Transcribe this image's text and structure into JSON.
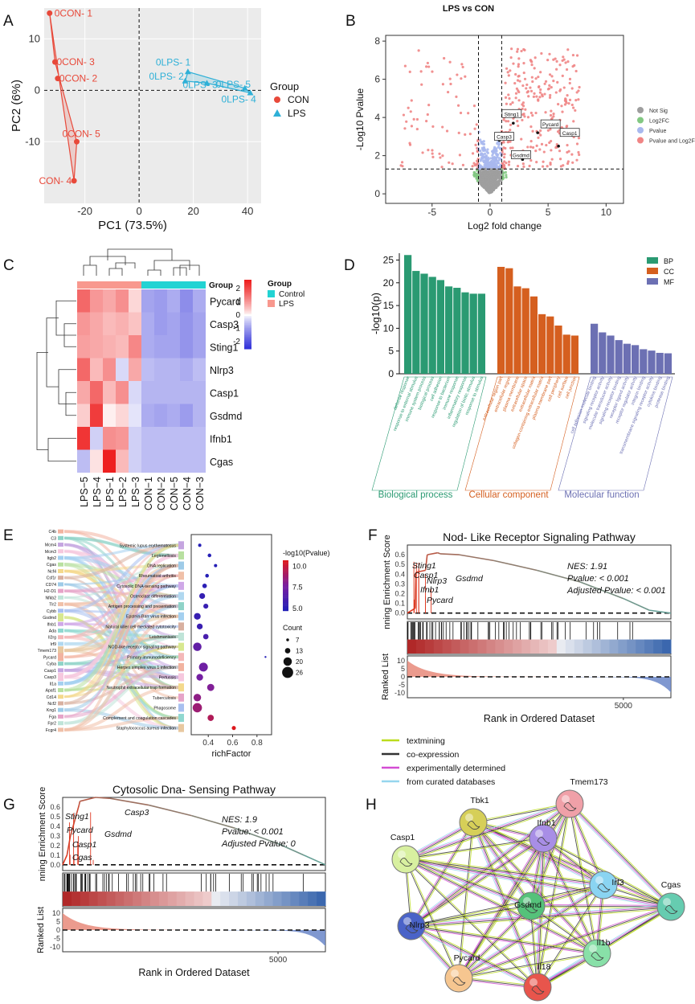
{
  "panel_letters": [
    "A",
    "B",
    "C",
    "D",
    "E",
    "F",
    "G",
    "H"
  ],
  "chart_data": [
    {
      "panel": "A",
      "type": "scatter",
      "xlabel": "PC1 (73.5%)",
      "ylabel": "PC2 (6%)",
      "xticks": [
        -20,
        0,
        20,
        40
      ],
      "yticks": [
        -10,
        0,
        10
      ],
      "xlim": [
        -35,
        45
      ],
      "ylim": [
        -22,
        16
      ],
      "legend_title": "Group",
      "legend": [
        "CON",
        "LPS"
      ],
      "colors": {
        "CON": "#e8493a",
        "LPS": "#2eb0d7"
      },
      "points": [
        {
          "label": "0CON- 1",
          "group": "CON",
          "x": -33,
          "y": 15
        },
        {
          "label": "0CON- 3",
          "group": "CON",
          "x": -31,
          "y": 5.5
        },
        {
          "label": "0CON- 2",
          "group": "CON",
          "x": -30,
          "y": 2.3
        },
        {
          "label": "0CON- 5",
          "group": "CON",
          "x": -23,
          "y": -10
        },
        {
          "label": "CON- 4",
          "group": "CON",
          "x": -24,
          "y": -17.6
        },
        {
          "label": "0LPS- 1",
          "group": "LPS",
          "x": 18,
          "y": 3.6
        },
        {
          "label": "0LPS- 2",
          "group": "LPS",
          "x": 17,
          "y": 1.8
        },
        {
          "label": "0LPS- 3",
          "group": "LPS",
          "x": 25,
          "y": 1.4
        },
        {
          "label": "0LPS- 5",
          "group": "LPS",
          "x": 39,
          "y": 0.4
        },
        {
          "label": "0LPS- 4",
          "group": "LPS",
          "x": 41,
          "y": -0.5
        }
      ]
    },
    {
      "panel": "B",
      "type": "scatter",
      "title": "LPS vs CON",
      "xlabel": "Log2 fold change",
      "ylabel": "-Log10 Pvalue",
      "xticks": [
        -5,
        0,
        5,
        10
      ],
      "yticks": [
        0,
        2,
        4,
        6,
        8
      ],
      "xlim": [
        -9,
        11.5
      ],
      "ylim": [
        -0.5,
        8.3
      ],
      "thresholds": {
        "log2fc": [
          -1,
          1
        ],
        "log10p": 1.3
      },
      "legend": [
        "Not Sig",
        "Log2FC",
        "Pvalue",
        "Pvalue and Log2FC"
      ],
      "legend_colors": [
        "#9e9e9e",
        "#82c882",
        "#a8b8ee",
        "#f08585"
      ],
      "annotations": [
        {
          "label": "Sting1",
          "x": 2.0,
          "y": 3.7
        },
        {
          "label": "Pycard",
          "x": 4.1,
          "y": 3.2
        },
        {
          "label": "Casp3",
          "x": 0.8,
          "y": 2.8
        },
        {
          "label": "Casp1",
          "x": 5.9,
          "y": 2.5
        },
        {
          "label": "Gsdmd",
          "x": 2.8,
          "y": 1.8
        }
      ]
    },
    {
      "panel": "C",
      "type": "heatmap",
      "rows": [
        "Pycard",
        "Casp3",
        "Sting1",
        "Nlrp3",
        "Casp1",
        "Gsdmd",
        "Ifnb1",
        "Cgas"
      ],
      "columns": [
        "LPS−5",
        "LPS−4",
        "LPS−1",
        "LPS−2",
        "LPS−3",
        "CON−1",
        "CON−2",
        "CON−5",
        "CON−4",
        "CON−3"
      ],
      "annotation_label": "Group",
      "legend_title": "Group",
      "legend": [
        "Control",
        "LPS"
      ],
      "group_colors": {
        "Control": "#22d3d3",
        "LPS": "#f8988e"
      },
      "colorbar_ticks": [
        2,
        1,
        0,
        -1,
        -2
      ],
      "values": [
        [
          1.6,
          1.0,
          0.8,
          1.1,
          0.3,
          -0.9,
          -1.0,
          -0.8,
          -1.2,
          -0.8
        ],
        [
          1.0,
          0.8,
          0.6,
          0.7,
          0.5,
          -0.8,
          -1.0,
          -0.9,
          -1.1,
          -0.9
        ],
        [
          0.9,
          0.8,
          0.7,
          0.6,
          1.2,
          -0.8,
          -0.9,
          -0.9,
          -1.1,
          -0.9
        ],
        [
          1.6,
          0.6,
          1.1,
          -0.3,
          0.8,
          -0.6,
          -0.7,
          -0.7,
          -0.8,
          -0.6
        ],
        [
          0.8,
          1.6,
          0.6,
          1.1,
          -0.3,
          -0.7,
          -0.7,
          -0.7,
          -0.7,
          -0.7
        ],
        [
          0.4,
          2.2,
          0.1,
          0.3,
          -0.2,
          -0.8,
          -0.9,
          -0.8,
          -1.0,
          -0.7
        ],
        [
          2.3,
          -0.4,
          1.1,
          1.0,
          -0.4,
          -0.6,
          -0.6,
          -0.6,
          -0.6,
          -0.6
        ],
        [
          -0.6,
          0.2,
          2.6,
          0.6,
          -0.4,
          -0.6,
          -0.6,
          -0.6,
          -0.6,
          -0.6
        ]
      ]
    },
    {
      "panel": "D",
      "type": "bar",
      "ylabel": "-log10(p)",
      "yticks": [
        0,
        5,
        10,
        15,
        20,
        25
      ],
      "ylim": [
        0,
        26.5
      ],
      "legend": [
        "BP",
        "CC",
        "MF"
      ],
      "colors": {
        "BP": "#2a9a72",
        "CC": "#d55f1f",
        "MF": "#6c70b3"
      },
      "group_labels": {
        "BP": "Biological process",
        "CC": "Cellular component",
        "MF": "Molecular function"
      },
      "series": [
        {
          "name": "BP",
          "categories": [
            "defense response",
            "response to external stimulus",
            "immune system process",
            "biological process",
            "cell adhesion",
            "response to bacterium",
            "immune response",
            "inflammatory response",
            "regulation of biotic stimulus",
            "response to stimulus"
          ],
          "values": [
            26.1,
            22.6,
            22.0,
            21.3,
            20.6,
            19.2,
            18.9,
            17.9,
            17.6,
            17.6
          ]
        },
        {
          "name": "CC",
          "categories": [
            "extracellular region part",
            "extracellular region",
            "plasma membrane",
            "extracellular space",
            "extracellular matrix",
            "collagen-containing extracellular matrix",
            "plasma membrane part",
            "cell periphery",
            "cell surface",
            "cell junction"
          ],
          "values": [
            23.5,
            23.2,
            19.2,
            18.8,
            17.0,
            13.1,
            12.6,
            10.6,
            8.6,
            8.4
          ]
        },
        {
          "name": "MF",
          "categories": [
            "cell adhesion molecule binding",
            "signaling receptor activity",
            "molecular transducer activity",
            "signaling receptor binding",
            "receptor ligand activity",
            "receptor regulator activity",
            "integrin binding",
            "transmembrane signaling receptor activity",
            "cytokine binding",
            "protease binding"
          ],
          "values": [
            11.0,
            9.1,
            8.4,
            7.4,
            6.6,
            6.3,
            5.4,
            5.1,
            4.6,
            4.5
          ]
        }
      ]
    },
    {
      "panel": "E",
      "type": "scatter",
      "xlabel": "richFactor",
      "xticks": [
        0.4,
        0.6,
        0.8
      ],
      "xlim": [
        0.26,
        0.92
      ],
      "color_title": "-log10(Pvalue)",
      "color_ticks": [
        10.0,
        7.5,
        5.0
      ],
      "size_title": "Count",
      "size_ticks": [
        7,
        13,
        20,
        26
      ],
      "genes": [
        "C4b",
        "C3",
        "Mcm4",
        "Mcm3",
        "Itgb2",
        "Cgas",
        "Ncf4",
        "Csf1r",
        "CD74",
        "H2-D1",
        "Nfkb2",
        "Tlr2",
        "Cybb",
        "Gsdmd",
        "Ifnb1",
        "Ada",
        "Il2rg",
        "Irf9",
        "Tmem173",
        "Pycard",
        "Cyba",
        "Casp1",
        "Casp3",
        "Il1a",
        "Apaf1",
        "Cd14",
        "Ncf2",
        "Kng1",
        "Fga",
        "Fpr2",
        "Fcgr4"
      ],
      "pathways": [
        "Systemic lupus erythematosus",
        "Legionellosis",
        "DNA replication",
        "Rheumatoid arthritis",
        "Cytosolic DNA-sensing pathway",
        "Osteoclast differentiation",
        "Antigen processing and presentation",
        "Epstein-Barr virus infection",
        "Natural killer cell mediated cytotoxicity",
        "Leishmaniasis",
        "NOD-like receptor signaling pathway",
        "Primary immunodeficiency",
        "Herpes simplex virus 1 infection",
        "Pertussis",
        "Neutrophil extracellular trap formation",
        "Tuberculosis",
        "Phagosome",
        "Complement and coagulation cascades",
        "Staphylococcus aureus infection"
      ],
      "richFactor": [
        0.33,
        0.41,
        0.46,
        0.39,
        0.37,
        0.35,
        0.38,
        0.31,
        0.33,
        0.38,
        0.31,
        0.87,
        0.36,
        0.33,
        0.42,
        0.31,
        0.31,
        0.42,
        0.61
      ],
      "counts": [
        8,
        9,
        8,
        9,
        11,
        14,
        12,
        16,
        14,
        13,
        20,
        5,
        21,
        16,
        17,
        18,
        22,
        15,
        10
      ],
      "log10p": [
        5.0,
        5.0,
        5.0,
        5.0,
        5.2,
        5.5,
        5.6,
        5.6,
        5.7,
        6.2,
        7.0,
        5.0,
        7.4,
        7.6,
        8.0,
        8.4,
        8.8,
        9.4,
        10.7
      ]
    },
    {
      "panel": "F",
      "type": "line",
      "title": "Nod- Like Receptor Signaling Pathway",
      "ylabel": "nning Enrichment Score",
      "ylabel2": "Ranked List",
      "xlabel": "Rank in Ordered Dataset",
      "xticks": [
        5000
      ],
      "yticks": [
        0.0,
        0.1,
        0.2,
        0.3,
        0.4,
        0.5,
        0.6
      ],
      "yticks2": [
        10,
        5,
        0,
        -5,
        -10
      ],
      "stats": [
        "NES: 1.91",
        "Pvalue: < 0.001",
        "Adjusted Pvalue: < 0.001"
      ],
      "genes": [
        "Sting1",
        "Nlrp3",
        "Casp1",
        "Ifnb1",
        "Pycard",
        "Gsdmd"
      ],
      "x": [
        0,
        180,
        200,
        420,
        460,
        700,
        760,
        1200,
        2000,
        3000,
        4000,
        5000,
        5600,
        6100
      ],
      "y": [
        0,
        0.05,
        0.42,
        0.44,
        0.6,
        0.62,
        0.61,
        0.6,
        0.54,
        0.44,
        0.32,
        0.15,
        0.03,
        0
      ]
    },
    {
      "panel": "G",
      "type": "line",
      "title": "Cytosolic Dna- Sensing Pathway",
      "ylabel": "nning Enrichment Score",
      "ylabel2": "Ranked List",
      "xlabel": "Rank in Ordered Dataset",
      "xticks": [
        5000
      ],
      "yticks": [
        0.0,
        0.1,
        0.2,
        0.3,
        0.4,
        0.5,
        0.6
      ],
      "yticks2": [
        10,
        5,
        0,
        -5,
        -10
      ],
      "stats": [
        "NES: 1.9",
        "Pvalue: < 0.001",
        "Adjusted Pvalue: 0"
      ],
      "genes": [
        "Sting1",
        "Pycard",
        "Casp1",
        "Cgas",
        "Gsdmd",
        "Casp3"
      ],
      "x": [
        0,
        100,
        180,
        380,
        400,
        760,
        1100,
        2000,
        3000,
        4000,
        5000,
        5600,
        6100
      ],
      "y": [
        0,
        0.1,
        0.3,
        0.62,
        0.66,
        0.7,
        0.69,
        0.62,
        0.51,
        0.38,
        0.22,
        0.1,
        0
      ]
    },
    {
      "panel": "H",
      "type": "network",
      "legend": [
        "textmining",
        "co-expression",
        "experimentally determined",
        "from curated databases"
      ],
      "legend_colors": [
        "#bbdc1d",
        "#333333",
        "#d44cd4",
        "#96d6ee"
      ],
      "nodes": [
        {
          "name": "Tbk1",
          "color": "#d6cf58"
        },
        {
          "name": "Tmem173",
          "color": "#f0a0a8"
        },
        {
          "name": "Ifnb1",
          "color": "#a88ee6"
        },
        {
          "name": "Casp1",
          "color": "#d8f0a0"
        },
        {
          "name": "Irf3",
          "color": "#8ad4f2"
        },
        {
          "name": "Cgas",
          "color": "#66ccb0"
        },
        {
          "name": "Gsdmd",
          "color": "#55c27a"
        },
        {
          "name": "Nlrp3",
          "color": "#4a63c8"
        },
        {
          "name": "Il1b",
          "color": "#88e0a8"
        },
        {
          "name": "Pycard",
          "color": "#f6c690"
        },
        {
          "name": "Il18",
          "color": "#e8554c"
        }
      ]
    }
  ]
}
